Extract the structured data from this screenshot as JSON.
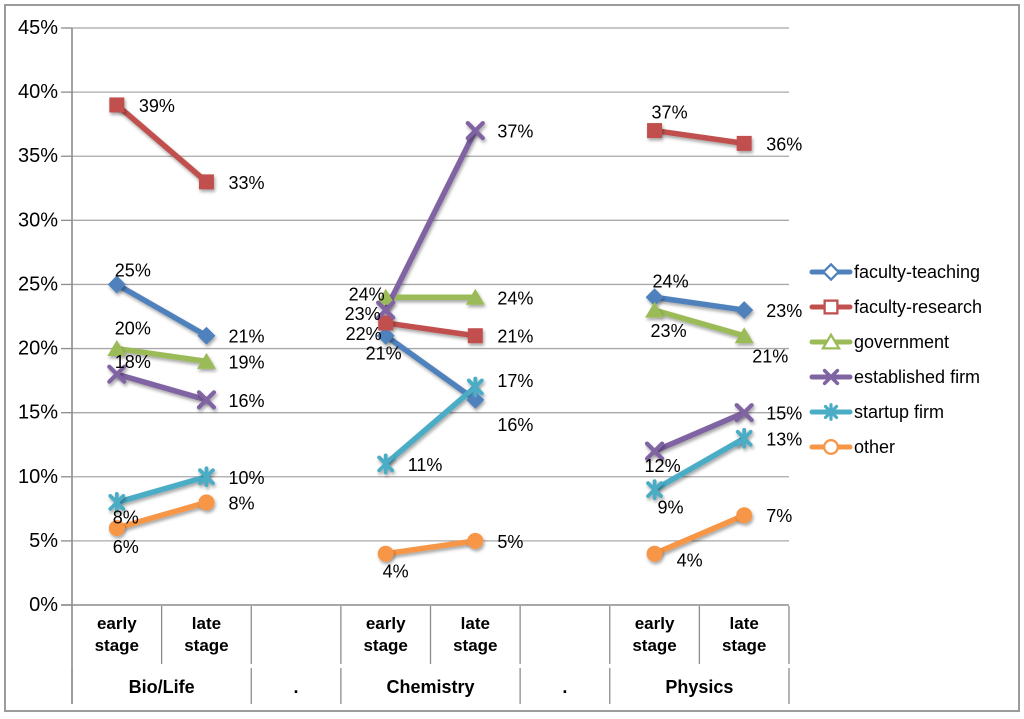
{
  "chart_data": {
    "type": "line",
    "title": "",
    "ylabel": "",
    "xlabel": "",
    "grid": true,
    "legend_position": "right",
    "y_axis": {
      "min": 0,
      "max": 45,
      "step": 5,
      "unit": "%",
      "tick_labels": [
        "0%",
        "5%",
        "10%",
        "15%",
        "20%",
        "25%",
        "30%",
        "35%",
        "40%",
        "45%"
      ]
    },
    "column_headers": [
      "early stage",
      "late stage",
      "",
      "early stage",
      "late stage",
      "",
      "early stage",
      "late stage"
    ],
    "group_labels": [
      {
        "label": "Bio/Life",
        "span": [
          0,
          1
        ]
      },
      {
        "label": ".",
        "span": [
          2,
          2
        ]
      },
      {
        "label": "Chemistry",
        "span": [
          3,
          4
        ]
      },
      {
        "label": ".",
        "span": [
          5,
          5
        ]
      },
      {
        "label": "Physics",
        "span": [
          6,
          7
        ]
      }
    ],
    "series": [
      {
        "name": "faculty-teaching",
        "color": "#4F81BD",
        "marker": "diamond",
        "points": [
          {
            "col": 0,
            "value": 25,
            "label": "25%",
            "dx": 16,
            "dy": -14,
            "anchor": "middle"
          },
          {
            "col": 1,
            "value": 21,
            "label": "21%",
            "dx": 22,
            "dy": 1,
            "anchor": "start"
          },
          {
            "col": 3,
            "value": 21,
            "label": "21%",
            "dx": 16,
            "dy": 18,
            "anchor": "end"
          },
          {
            "col": 4,
            "value": 16,
            "label": "16%",
            "dx": 22,
            "dy": 25,
            "anchor": "start"
          },
          {
            "col": 6,
            "value": 24,
            "label": "24%",
            "dx": 16,
            "dy": -16,
            "anchor": "middle"
          },
          {
            "col": 7,
            "value": 23,
            "label": "23%",
            "dx": 22,
            "dy": 1,
            "anchor": "start"
          }
        ]
      },
      {
        "name": "faculty-research",
        "color": "#C0504D",
        "marker": "square",
        "points": [
          {
            "col": 0,
            "value": 39,
            "label": "39%",
            "dx": 22,
            "dy": 1,
            "anchor": "start"
          },
          {
            "col": 1,
            "value": 33,
            "label": "33%",
            "dx": 22,
            "dy": 1,
            "anchor": "start"
          },
          {
            "col": 3,
            "value": 22,
            "label": "22%",
            "dx": -4,
            "dy": 11,
            "anchor": "end"
          },
          {
            "col": 4,
            "value": 21,
            "label": "21%",
            "dx": 22,
            "dy": 1,
            "anchor": "start"
          },
          {
            "col": 6,
            "value": 37,
            "label": "37%",
            "dx": 15,
            "dy": -18,
            "anchor": "middle"
          },
          {
            "col": 7,
            "value": 36,
            "label": "36%",
            "dx": 22,
            "dy": 1,
            "anchor": "start"
          }
        ]
      },
      {
        "name": "government",
        "color": "#9BBB59",
        "marker": "triangle",
        "points": [
          {
            "col": 0,
            "value": 20,
            "label": "20%",
            "dx": 16,
            "dy": -20,
            "anchor": "middle"
          },
          {
            "col": 1,
            "value": 19,
            "label": "19%",
            "dx": 22,
            "dy": 1,
            "anchor": "start"
          },
          {
            "col": 3,
            "value": 24,
            "label": "24%",
            "dx": -1,
            "dy": -3,
            "anchor": "end"
          },
          {
            "col": 4,
            "value": 24,
            "label": "24%",
            "dx": 22,
            "dy": 1,
            "anchor": "start"
          },
          {
            "col": 6,
            "value": 23,
            "label": "23%",
            "dx": 14,
            "dy": 21,
            "anchor": "middle"
          },
          {
            "col": 7,
            "value": 21,
            "label": "21%",
            "dx": 8,
            "dy": 21,
            "anchor": "start"
          }
        ]
      },
      {
        "name": "established firm",
        "color": "#8064A2",
        "marker": "x",
        "points": [
          {
            "col": 0,
            "value": 18,
            "label": "18%",
            "dx": 16,
            "dy": -12,
            "anchor": "middle"
          },
          {
            "col": 1,
            "value": 16,
            "label": "16%",
            "dx": 22,
            "dy": 1,
            "anchor": "start"
          },
          {
            "col": 3,
            "value": 23,
            "label": "23%",
            "dx": -5,
            "dy": 4,
            "anchor": "end"
          },
          {
            "col": 4,
            "value": 37,
            "label": "37%",
            "dx": 22,
            "dy": 1,
            "anchor": "start"
          },
          {
            "col": 6,
            "value": 12,
            "label": "12%",
            "dx": 8,
            "dy": 15,
            "anchor": "middle"
          },
          {
            "col": 7,
            "value": 15,
            "label": "15%",
            "dx": 22,
            "dy": 1,
            "anchor": "start"
          }
        ]
      },
      {
        "name": "startup firm",
        "color": "#4BACC6",
        "marker": "asterisk",
        "points": [
          {
            "col": 0,
            "value": 8,
            "label": "8%",
            "dx": 9,
            "dy": 15,
            "anchor": "middle"
          },
          {
            "col": 1,
            "value": 10,
            "label": "10%",
            "dx": 22,
            "dy": 1,
            "anchor": "start"
          },
          {
            "col": 3,
            "value": 11,
            "label": "11%",
            "dx": 22,
            "dy": 1,
            "anchor": "start"
          },
          {
            "col": 4,
            "value": 17,
            "label": "17%",
            "dx": 22,
            "dy": -6,
            "anchor": "start"
          },
          {
            "col": 6,
            "value": 9,
            "label": "9%",
            "dx": 16,
            "dy": 18,
            "anchor": "middle"
          },
          {
            "col": 7,
            "value": 13,
            "label": "13%",
            "dx": 22,
            "dy": 1,
            "anchor": "start"
          }
        ]
      },
      {
        "name": "other",
        "color": "#F79646",
        "marker": "circle",
        "points": [
          {
            "col": 0,
            "value": 6,
            "label": "6%",
            "dx": 9,
            "dy": 19,
            "anchor": "middle"
          },
          {
            "col": 1,
            "value": 8,
            "label": "8%",
            "dx": 22,
            "dy": 1,
            "anchor": "start"
          },
          {
            "col": 3,
            "value": 4,
            "label": "4%",
            "dx": 10,
            "dy": 18,
            "anchor": "middle"
          },
          {
            "col": 4,
            "value": 5,
            "label": "5%",
            "dx": 22,
            "dy": 1,
            "anchor": "start"
          },
          {
            "col": 6,
            "value": 4,
            "label": "4%",
            "dx": 22,
            "dy": 7,
            "anchor": "start"
          },
          {
            "col": 7,
            "value": 7,
            "label": "7%",
            "dx": 22,
            "dy": 1,
            "anchor": "start"
          }
        ]
      }
    ],
    "style_colors": {
      "gridline": "#A8A8A8",
      "axis": "#8C8C8C",
      "frame_border": "#9C9C9C",
      "text": "#000000"
    }
  }
}
